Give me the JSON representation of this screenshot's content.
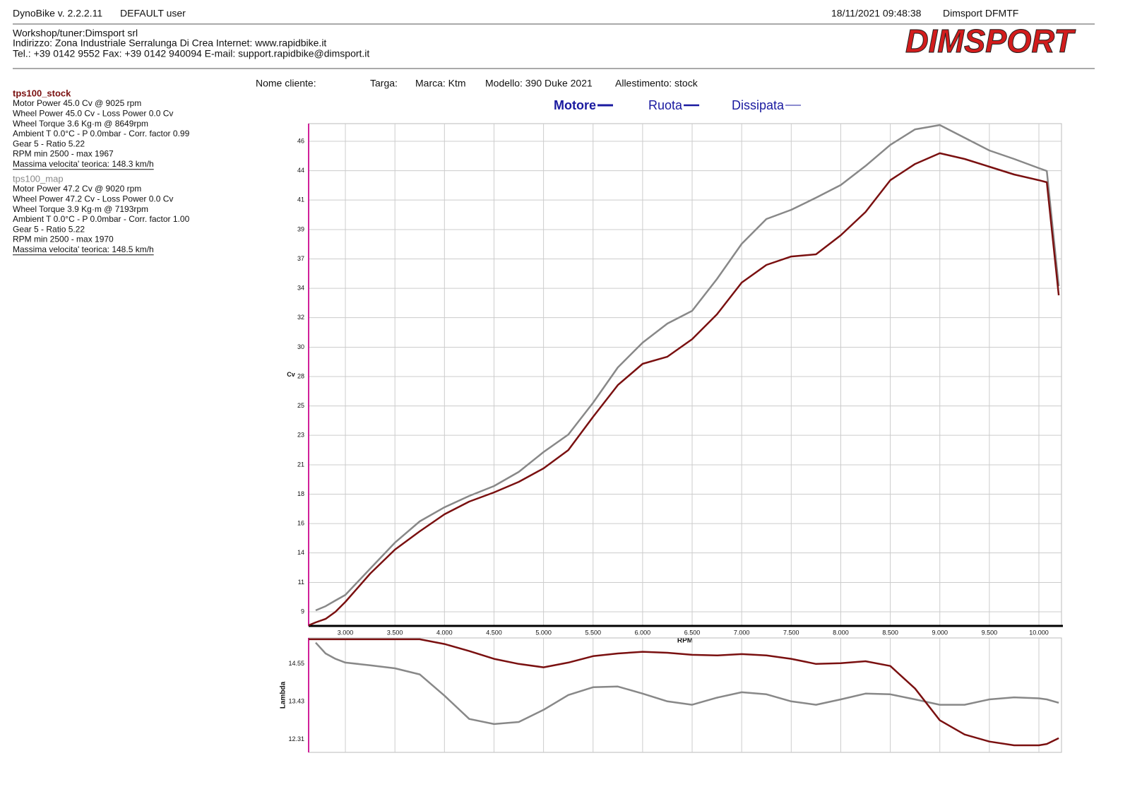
{
  "header": {
    "app": "DynoBike v. 2.2.2.11",
    "user": "DEFAULT user",
    "datetime": "18/11/2021 09:48:38",
    "device": "Dimsport DFMTF",
    "workshop": [
      "Workshop/tuner:Dimsport srl",
      "Indirizzo: Zona Industriale Serralunga Di Crea Internet: www.rapidbike.it",
      "Tel.: +39 0142 9552 Fax: +39 0142 940094 E-mail: support.rapidbike@dimsport.it"
    ],
    "logo": "DIMSPORT"
  },
  "fields": [
    "Nome cliente:",
    "Targa:",
    "Marca: Ktm",
    "Modello: 390 Duke 2021",
    "Allestimento: stock"
  ],
  "legend_items": [
    "Motore",
    "Ruota",
    "Dissipata"
  ],
  "runs": [
    {
      "lines": [
        "Motor Power 45.0 Cv  @ 9025 rpm",
        "Wheel Power 45.0 Cv  - Loss Power 0.0 Cv",
        "Wheel Torque 3.6 Kg·m  @ 8649rpm",
        "Ambient T 0.0°C - P 0.0mbar - Corr. factor 0.99",
        "Gear 5 - Ratio 5.22",
        "RPM min 2500 - max 1967"
      ],
      "speed": "Massima velocita' teorica: 148.3 km/h"
    },
    {
      "lines": [
        "Motor Power 47.2 Cv  @ 9020 rpm",
        "Wheel Power 47.2 Cv  - Loss Power 0.0 Cv",
        "Wheel Torque 3.9 Kg·m  @ 7193rpm",
        "Ambient T 0.0°C - P 0.0mbar - Corr. factor 1.00",
        "Gear 5 - Ratio 5.22",
        "RPM min 2500 - max 1970"
      ],
      "speed": "Massima velocita' teorica: 148.5 km/h"
    }
  ],
  "chart_data": [
    {
      "type": "line",
      "x_label": "RPM",
      "y_label": "Cv",
      "x": [
        2630,
        2700,
        2800,
        2900,
        3000,
        3250,
        3500,
        3750,
        4000,
        4250,
        4500,
        4750,
        5000,
        5250,
        5500,
        5750,
        6000,
        6250,
        6500,
        6750,
        7000,
        7250,
        7500,
        7750,
        8000,
        8250,
        8500,
        8750,
        9000,
        9250,
        9500,
        9750,
        10000,
        10080,
        10200
      ],
      "xlim": [
        2629,
        10228
      ],
      "xticks": [
        {
          "value": 3000,
          "label": "3.000"
        },
        {
          "value": 3500,
          "label": "3.500"
        },
        {
          "value": 4000,
          "label": "4.000"
        },
        {
          "value": 4500,
          "label": "4.500"
        },
        {
          "value": 5000,
          "label": "5.000"
        },
        {
          "value": 5500,
          "label": "5.500"
        },
        {
          "value": 6000,
          "label": "6.000"
        },
        {
          "value": 6500,
          "label": "6.500"
        },
        {
          "value": 7000,
          "label": "7.000"
        },
        {
          "value": 7500,
          "label": "7.500"
        },
        {
          "value": 8000,
          "label": "8.000"
        },
        {
          "value": 8500,
          "label": "8.500"
        },
        {
          "value": 9000,
          "label": "9.000"
        },
        {
          "value": 9500,
          "label": "9.500"
        },
        {
          "value": 10000,
          "label": "10.000"
        }
      ],
      "ylim": [
        7.89,
        47.39
      ],
      "yticks": [
        9,
        {
          "value": 11.31,
          "label": "11"
        },
        {
          "value": 13.63,
          "label": "14"
        },
        {
          "value": 15.94,
          "label": "16"
        },
        {
          "value": 18.25,
          "label": "18"
        },
        {
          "value": 20.56,
          "label": "21"
        },
        {
          "value": 22.88,
          "label": "23"
        },
        {
          "value": 25.19,
          "label": "25"
        },
        {
          "value": 27.5,
          "label": "28"
        },
        {
          "value": 29.81,
          "label": "30"
        },
        {
          "value": 32.13,
          "label": "32"
        },
        {
          "value": 34.44,
          "label": "34"
        },
        {
          "value": 36.75,
          "label": "37"
        },
        {
          "value": 39.06,
          "label": "39"
        },
        {
          "value": 41.38,
          "label": "41"
        },
        {
          "value": 43.69,
          "label": "44"
        },
        46
      ],
      "grid": true,
      "series": [
        {
          "name": "tps100_stock",
          "color": "#7a1010",
          "values": [
            7.94,
            8.17,
            8.44,
            9.0,
            9.78,
            12.0,
            13.89,
            15.33,
            16.67,
            17.67,
            18.39,
            19.22,
            20.28,
            21.72,
            24.33,
            26.83,
            28.5,
            29.06,
            30.44,
            32.39,
            34.89,
            36.28,
            36.94,
            37.11,
            38.61,
            40.44,
            42.94,
            44.22,
            45.06,
            44.61,
            44.0,
            43.39,
            42.94,
            42.78,
            33.89
          ]
        },
        {
          "name": "tps100_map",
          "color": "#888888",
          "values": [
            null,
            9.11,
            9.44,
            9.89,
            10.33,
            12.39,
            14.44,
            16.11,
            17.22,
            18.11,
            18.89,
            20.0,
            21.56,
            22.94,
            25.44,
            28.22,
            30.17,
            31.67,
            32.67,
            35.17,
            37.94,
            39.89,
            40.61,
            41.56,
            42.56,
            44.06,
            45.72,
            46.94,
            47.28,
            46.28,
            45.28,
            44.61,
            43.89,
            43.67,
            34.61
          ]
        }
      ]
    },
    {
      "type": "line",
      "y_label": "Lambda",
      "x": [
        2630,
        2700,
        2800,
        2900,
        3000,
        3250,
        3500,
        3750,
        4000,
        4250,
        4500,
        4750,
        5000,
        5250,
        5500,
        5750,
        6000,
        6250,
        6500,
        6750,
        7000,
        7250,
        7500,
        7750,
        8000,
        8250,
        8500,
        8750,
        9000,
        9250,
        9500,
        9750,
        10000,
        10080,
        10200
      ],
      "xlim": [
        2629,
        10228
      ],
      "ylim": [
        11.93,
        15.32
      ],
      "yticks": [
        14.55,
        13.43,
        12.31
      ],
      "grid": true,
      "series": [
        {
          "name": "tps100_stock",
          "color": "#7a1010",
          "values": [
            15.28,
            15.28,
            15.28,
            15.28,
            15.28,
            15.28,
            15.28,
            15.28,
            15.14,
            14.93,
            14.7,
            14.55,
            14.45,
            14.59,
            14.78,
            14.86,
            14.91,
            14.88,
            14.82,
            14.8,
            14.84,
            14.8,
            14.7,
            14.55,
            14.57,
            14.63,
            14.49,
            13.82,
            12.88,
            12.46,
            12.25,
            12.14,
            12.14,
            12.18,
            12.35
          ]
        },
        {
          "name": "tps100_map",
          "color": "#888888",
          "values": [
            null,
            15.18,
            14.86,
            14.7,
            14.59,
            14.51,
            14.42,
            14.24,
            13.61,
            12.92,
            12.77,
            12.83,
            13.19,
            13.63,
            13.86,
            13.88,
            13.67,
            13.44,
            13.34,
            13.55,
            13.71,
            13.65,
            13.44,
            13.34,
            13.5,
            13.67,
            13.65,
            13.5,
            13.34,
            13.34,
            13.5,
            13.56,
            13.53,
            13.5,
            13.4
          ]
        }
      ]
    }
  ]
}
